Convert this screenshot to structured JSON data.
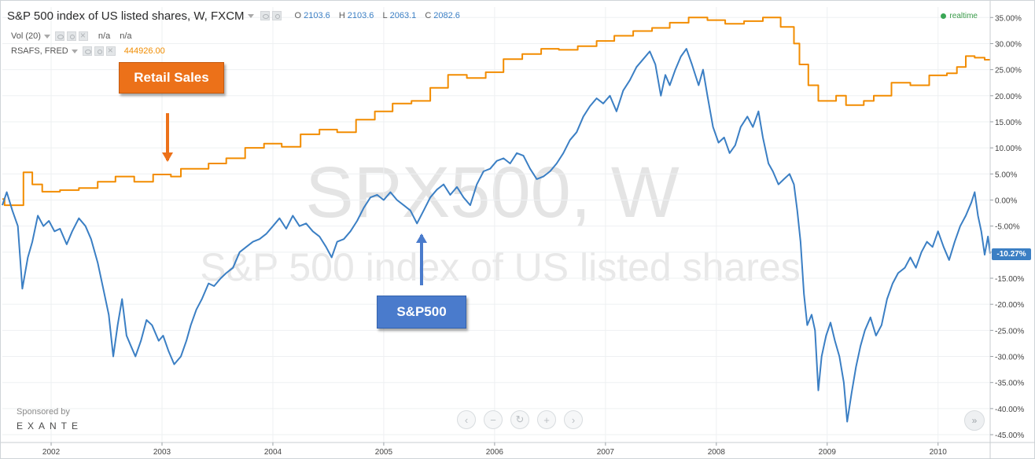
{
  "header": {
    "title": "S&P 500 index of US listed shares, W, FXCM",
    "ohlc": [
      {
        "key": "O",
        "value": "2103.6"
      },
      {
        "key": "H",
        "value": "2103.6"
      },
      {
        "key": "L",
        "value": "2063.1"
      },
      {
        "key": "C",
        "value": "2082.6"
      }
    ],
    "realtime": "realtime"
  },
  "indicators": {
    "vol": {
      "label": "Vol (20)",
      "val1": "n/a",
      "val2": "n/a"
    },
    "rsafs": {
      "label": "RSAFS, FRED",
      "value": "444926.00"
    }
  },
  "watermark": {
    "line1": "SPX500, W",
    "line2": "S&P 500 index of US listed shares"
  },
  "callouts": {
    "retail": "Retail Sales",
    "sp500": "S&P500"
  },
  "price_label": "-10.27%",
  "sponsor": {
    "line1": "Sponsored by",
    "line2": "EXANTE"
  },
  "nav": {
    "back": "‹",
    "minus": "−",
    "reset": "↻",
    "plus": "+",
    "forward": "›",
    "scroll_end": "»"
  },
  "colors": {
    "sp500": "#3b7fc4",
    "retail": "#f28c00",
    "retail_callout": "#ec7119",
    "sp_callout": "#4a7bcc"
  },
  "chart_data": {
    "type": "line",
    "xlabel_ticks": [
      "2002",
      "2003",
      "2004",
      "2005",
      "2006",
      "2007",
      "2008",
      "2009",
      "2010"
    ],
    "x_tick_values": [
      2002,
      2003,
      2004,
      2005,
      2006,
      2007,
      2008,
      2009,
      2010
    ],
    "xlim": [
      2001.56,
      2010.47
    ],
    "ylim": [
      -46.5,
      37
    ],
    "y_ticks": [
      35,
      30,
      25,
      20,
      15,
      10,
      5,
      0,
      -5,
      -10,
      -15,
      -20,
      -25,
      -30,
      -35,
      -40,
      -45
    ],
    "y_tick_labels": [
      "35.00%",
      "30.00%",
      "25.00%",
      "20.00%",
      "15.00%",
      "10.00%",
      "5.00%",
      "0.00%",
      "-5.00%",
      "-10.00%",
      "-15.00%",
      "-20.00%",
      "-25.00%",
      "-30.00%",
      "-35.00%",
      "-40.00%",
      "-45.00%"
    ],
    "grid": true,
    "series": [
      {
        "color": "#f28c00",
        "step": true,
        "points": [
          [
            2001.56,
            0.2
          ],
          [
            2001.58,
            -1.0
          ],
          [
            2001.75,
            5.3
          ],
          [
            2001.83,
            3.0
          ],
          [
            2001.92,
            1.6
          ],
          [
            2002.08,
            1.9
          ],
          [
            2002.25,
            2.3
          ],
          [
            2002.42,
            3.5
          ],
          [
            2002.58,
            4.5
          ],
          [
            2002.75,
            3.5
          ],
          [
            2002.92,
            4.9
          ],
          [
            2003.08,
            4.5
          ],
          [
            2003.17,
            6.0
          ],
          [
            2003.42,
            7.0
          ],
          [
            2003.58,
            8.0
          ],
          [
            2003.75,
            10.0
          ],
          [
            2003.92,
            10.8
          ],
          [
            2004.08,
            10.2
          ],
          [
            2004.25,
            12.6
          ],
          [
            2004.42,
            13.5
          ],
          [
            2004.58,
            13.0
          ],
          [
            2004.75,
            15.4
          ],
          [
            2004.92,
            17.0
          ],
          [
            2005.08,
            18.5
          ],
          [
            2005.25,
            19.0
          ],
          [
            2005.42,
            21.5
          ],
          [
            2005.58,
            24.0
          ],
          [
            2005.75,
            23.4
          ],
          [
            2005.92,
            24.5
          ],
          [
            2006.08,
            27.0
          ],
          [
            2006.25,
            28.0
          ],
          [
            2006.42,
            29.0
          ],
          [
            2006.58,
            28.8
          ],
          [
            2006.75,
            29.5
          ],
          [
            2006.92,
            30.5
          ],
          [
            2007.08,
            31.5
          ],
          [
            2007.25,
            32.4
          ],
          [
            2007.42,
            33.0
          ],
          [
            2007.58,
            34.0
          ],
          [
            2007.75,
            35.0
          ],
          [
            2007.92,
            34.5
          ],
          [
            2008.08,
            33.8
          ],
          [
            2008.25,
            34.3
          ],
          [
            2008.42,
            35.0
          ],
          [
            2008.58,
            33.2
          ],
          [
            2008.7,
            30.0
          ],
          [
            2008.75,
            26.0
          ],
          [
            2008.83,
            22.0
          ],
          [
            2008.92,
            19.0
          ],
          [
            2009.08,
            20.0
          ],
          [
            2009.17,
            18.2
          ],
          [
            2009.33,
            19.0
          ],
          [
            2009.42,
            20.0
          ],
          [
            2009.58,
            22.5
          ],
          [
            2009.75,
            22.0
          ],
          [
            2009.92,
            23.9
          ],
          [
            2010.08,
            24.3
          ],
          [
            2010.17,
            25.5
          ],
          [
            2010.25,
            27.6
          ],
          [
            2010.33,
            27.3
          ],
          [
            2010.42,
            26.9
          ],
          [
            2010.47,
            26.9
          ]
        ]
      },
      {
        "color": "#3b7fc4",
        "step": false,
        "points": [
          [
            2001.56,
            -1.0
          ],
          [
            2001.6,
            1.5
          ],
          [
            2001.65,
            -2.0
          ],
          [
            2001.7,
            -5.0
          ],
          [
            2001.74,
            -17.0
          ],
          [
            2001.79,
            -11.0
          ],
          [
            2001.83,
            -8.0
          ],
          [
            2001.88,
            -3.0
          ],
          [
            2001.93,
            -5.0
          ],
          [
            2001.98,
            -4.0
          ],
          [
            2002.03,
            -6.0
          ],
          [
            2002.08,
            -5.5
          ],
          [
            2002.14,
            -8.5
          ],
          [
            2002.19,
            -6.0
          ],
          [
            2002.25,
            -3.5
          ],
          [
            2002.31,
            -5.0
          ],
          [
            2002.36,
            -7.5
          ],
          [
            2002.42,
            -12.0
          ],
          [
            2002.47,
            -17.0
          ],
          [
            2002.52,
            -22.0
          ],
          [
            2002.56,
            -30.0
          ],
          [
            2002.6,
            -24.0
          ],
          [
            2002.64,
            -19.0
          ],
          [
            2002.68,
            -26.0
          ],
          [
            2002.72,
            -28.0
          ],
          [
            2002.76,
            -30.0
          ],
          [
            2002.81,
            -27.0
          ],
          [
            2002.86,
            -23.0
          ],
          [
            2002.91,
            -24.0
          ],
          [
            2002.97,
            -27.0
          ],
          [
            2003.01,
            -26.0
          ],
          [
            2003.06,
            -29.0
          ],
          [
            2003.11,
            -31.5
          ],
          [
            2003.17,
            -30.0
          ],
          [
            2003.22,
            -27.0
          ],
          [
            2003.26,
            -24.0
          ],
          [
            2003.31,
            -21.0
          ],
          [
            2003.36,
            -19.0
          ],
          [
            2003.42,
            -16.0
          ],
          [
            2003.47,
            -16.5
          ],
          [
            2003.53,
            -15.0
          ],
          [
            2003.58,
            -14.0
          ],
          [
            2003.64,
            -13.0
          ],
          [
            2003.7,
            -10.0
          ],
          [
            2003.76,
            -9.0
          ],
          [
            2003.82,
            -8.0
          ],
          [
            2003.88,
            -7.5
          ],
          [
            2003.94,
            -6.5
          ],
          [
            2004.0,
            -5.0
          ],
          [
            2004.06,
            -3.5
          ],
          [
            2004.12,
            -5.5
          ],
          [
            2004.18,
            -3.0
          ],
          [
            2004.24,
            -5.0
          ],
          [
            2004.3,
            -4.5
          ],
          [
            2004.36,
            -6.0
          ],
          [
            2004.42,
            -7.0
          ],
          [
            2004.48,
            -9.0
          ],
          [
            2004.53,
            -11.0
          ],
          [
            2004.58,
            -8.0
          ],
          [
            2004.64,
            -7.5
          ],
          [
            2004.7,
            -6.0
          ],
          [
            2004.76,
            -4.0
          ],
          [
            2004.82,
            -1.5
          ],
          [
            2004.88,
            0.5
          ],
          [
            2004.94,
            1.0
          ],
          [
            2005.0,
            0.0
          ],
          [
            2005.06,
            1.5
          ],
          [
            2005.12,
            0.0
          ],
          [
            2005.18,
            -1.0
          ],
          [
            2005.24,
            -2.0
          ],
          [
            2005.3,
            -4.5
          ],
          [
            2005.36,
            -2.0
          ],
          [
            2005.42,
            0.5
          ],
          [
            2005.48,
            2.0
          ],
          [
            2005.54,
            3.0
          ],
          [
            2005.6,
            1.0
          ],
          [
            2005.66,
            2.5
          ],
          [
            2005.72,
            0.5
          ],
          [
            2005.78,
            -1.0
          ],
          [
            2005.84,
            3.0
          ],
          [
            2005.9,
            5.5
          ],
          [
            2005.96,
            6.0
          ],
          [
            2006.02,
            7.5
          ],
          [
            2006.08,
            8.0
          ],
          [
            2006.14,
            7.0
          ],
          [
            2006.2,
            9.0
          ],
          [
            2006.26,
            8.5
          ],
          [
            2006.32,
            6.0
          ],
          [
            2006.38,
            4.0
          ],
          [
            2006.44,
            4.5
          ],
          [
            2006.5,
            5.5
          ],
          [
            2006.56,
            7.0
          ],
          [
            2006.62,
            9.0
          ],
          [
            2006.68,
            11.5
          ],
          [
            2006.74,
            13.0
          ],
          [
            2006.8,
            16.0
          ],
          [
            2006.86,
            18.0
          ],
          [
            2006.92,
            19.5
          ],
          [
            2006.98,
            18.5
          ],
          [
            2007.04,
            20.0
          ],
          [
            2007.1,
            17.0
          ],
          [
            2007.16,
            21.0
          ],
          [
            2007.22,
            23.0
          ],
          [
            2007.28,
            25.5
          ],
          [
            2007.34,
            27.0
          ],
          [
            2007.4,
            28.5
          ],
          [
            2007.45,
            26.0
          ],
          [
            2007.5,
            20.0
          ],
          [
            2007.54,
            24.0
          ],
          [
            2007.58,
            22.0
          ],
          [
            2007.63,
            25.0
          ],
          [
            2007.68,
            27.5
          ],
          [
            2007.73,
            29.0
          ],
          [
            2007.78,
            26.0
          ],
          [
            2007.84,
            22.0
          ],
          [
            2007.88,
            25.0
          ],
          [
            2007.92,
            20.0
          ],
          [
            2007.97,
            14.0
          ],
          [
            2008.02,
            11.0
          ],
          [
            2008.07,
            12.0
          ],
          [
            2008.12,
            9.0
          ],
          [
            2008.17,
            10.5
          ],
          [
            2008.22,
            14.0
          ],
          [
            2008.28,
            16.0
          ],
          [
            2008.33,
            14.0
          ],
          [
            2008.38,
            17.0
          ],
          [
            2008.42,
            12.0
          ],
          [
            2008.47,
            7.0
          ],
          [
            2008.51,
            5.5
          ],
          [
            2008.56,
            3.0
          ],
          [
            2008.61,
            4.0
          ],
          [
            2008.66,
            5.0
          ],
          [
            2008.7,
            3.0
          ],
          [
            2008.73,
            -2.0
          ],
          [
            2008.76,
            -8.0
          ],
          [
            2008.79,
            -18.0
          ],
          [
            2008.82,
            -24.0
          ],
          [
            2008.86,
            -22.0
          ],
          [
            2008.89,
            -25.0
          ],
          [
            2008.92,
            -36.5
          ],
          [
            2008.95,
            -30.0
          ],
          [
            2008.99,
            -26.0
          ],
          [
            2009.03,
            -23.5
          ],
          [
            2009.07,
            -27.0
          ],
          [
            2009.11,
            -30.0
          ],
          [
            2009.15,
            -35.0
          ],
          [
            2009.18,
            -42.5
          ],
          [
            2009.22,
            -37.0
          ],
          [
            2009.26,
            -32.0
          ],
          [
            2009.3,
            -28.0
          ],
          [
            2009.34,
            -25.0
          ],
          [
            2009.39,
            -22.5
          ],
          [
            2009.44,
            -26.0
          ],
          [
            2009.49,
            -24.0
          ],
          [
            2009.54,
            -19.0
          ],
          [
            2009.59,
            -16.0
          ],
          [
            2009.64,
            -14.0
          ],
          [
            2009.7,
            -13.0
          ],
          [
            2009.75,
            -11.0
          ],
          [
            2009.8,
            -13.0
          ],
          [
            2009.85,
            -10.0
          ],
          [
            2009.9,
            -8.0
          ],
          [
            2009.95,
            -9.0
          ],
          [
            2010.0,
            -6.0
          ],
          [
            2010.05,
            -9.0
          ],
          [
            2010.1,
            -11.5
          ],
          [
            2010.15,
            -8.0
          ],
          [
            2010.2,
            -5.0
          ],
          [
            2010.25,
            -3.0
          ],
          [
            2010.3,
            -0.5
          ],
          [
            2010.33,
            1.5
          ],
          [
            2010.36,
            -3.0
          ],
          [
            2010.39,
            -6.0
          ],
          [
            2010.42,
            -10.5
          ],
          [
            2010.45,
            -7.0
          ],
          [
            2010.47,
            -10.3
          ]
        ]
      }
    ]
  }
}
